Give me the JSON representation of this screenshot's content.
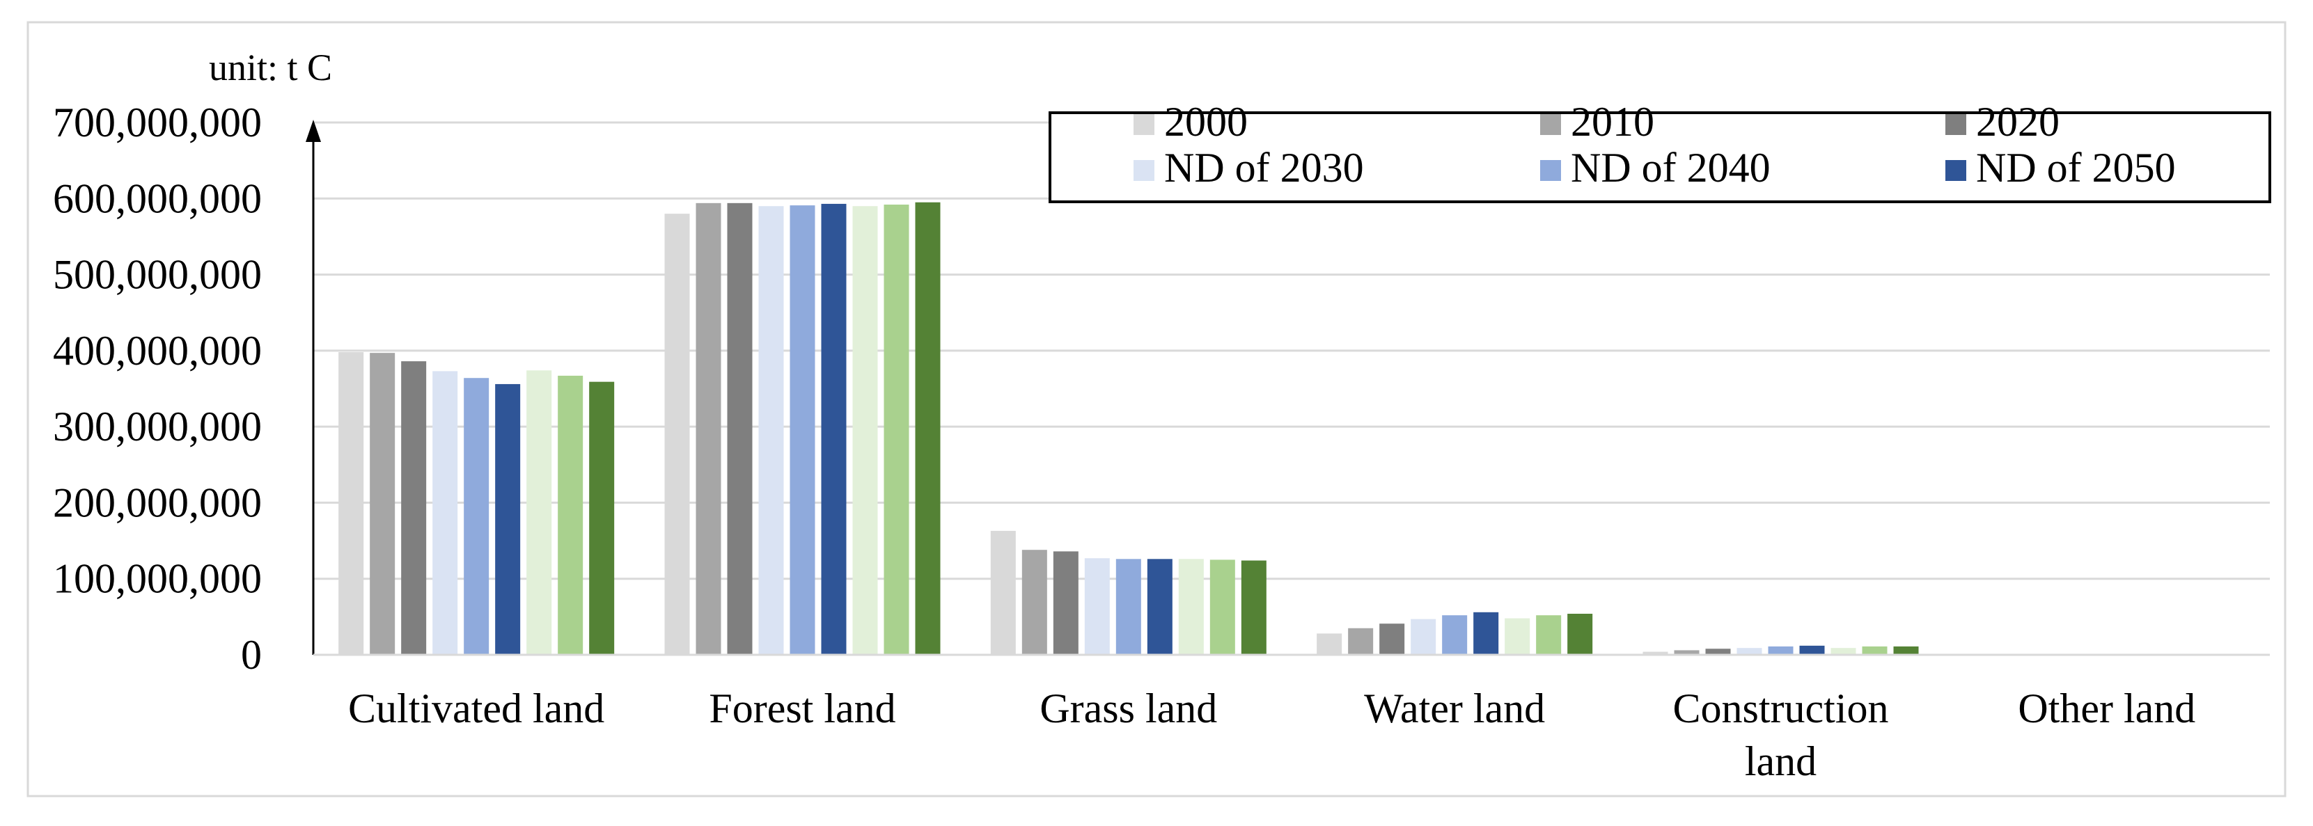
{
  "chart_data": {
    "type": "bar",
    "unit_label": "unit: t C",
    "categories": [
      [
        "Cultivated land"
      ],
      [
        "Forest land"
      ],
      [
        "Grass land"
      ],
      [
        "Water land"
      ],
      [
        "Construction",
        "land"
      ],
      [
        "Other land"
      ]
    ],
    "ylim": [
      0,
      700000000
    ],
    "yticks": [
      0,
      100000000,
      200000000,
      300000000,
      400000000,
      500000000,
      600000000,
      700000000
    ],
    "ytick_labels": [
      "0",
      "100,000,000",
      "200,000,000",
      "300,000,000",
      "400,000,000",
      "500,000,000",
      "600,000,000",
      "700,000,000"
    ],
    "grid": true,
    "legend_position": "top-right",
    "series": [
      {
        "name": "2000",
        "color": "#d9d9d9",
        "values": [
          398000000,
          580000000,
          163000000,
          28000000,
          4000000,
          0
        ]
      },
      {
        "name": "2010",
        "color": "#a6a6a6",
        "values": [
          397000000,
          594000000,
          138000000,
          35000000,
          6000000,
          0
        ]
      },
      {
        "name": "2020",
        "color": "#7f7f7f",
        "values": [
          386000000,
          594000000,
          136000000,
          41000000,
          8000000,
          0
        ]
      },
      {
        "name": "ND of 2030",
        "color": "#dae3f3",
        "values": [
          373000000,
          590000000,
          127000000,
          47000000,
          9000000,
          0
        ]
      },
      {
        "name": "ND of 2040",
        "color": "#8faadc",
        "values": [
          364000000,
          591000000,
          126000000,
          52000000,
          11000000,
          0
        ]
      },
      {
        "name": "ND of 2050",
        "color": "#2f5597",
        "values": [
          356000000,
          593000000,
          126000000,
          56000000,
          12000000,
          0
        ]
      },
      {
        "color": "#e2f0d9",
        "values": [
          374000000,
          590000000,
          126000000,
          48000000,
          9000000,
          0
        ]
      },
      {
        "color": "#a9d18e",
        "values": [
          367000000,
          592000000,
          125000000,
          52000000,
          11000000,
          0
        ]
      },
      {
        "color": "#548235",
        "values": [
          359000000,
          595000000,
          124000000,
          54000000,
          11000000,
          0
        ]
      }
    ]
  }
}
